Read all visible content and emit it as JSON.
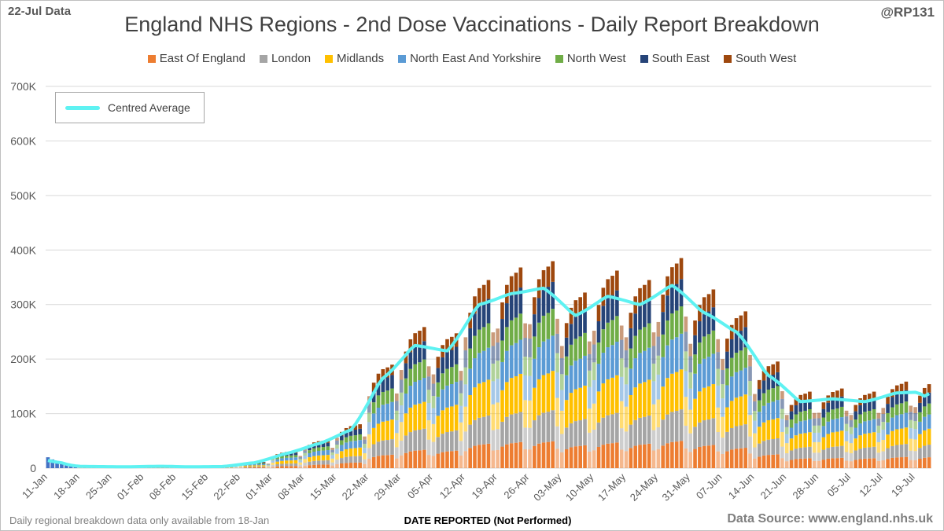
{
  "header": {
    "date_label": "22-Jul Data",
    "handle": "@RP131"
  },
  "footer": {
    "note": "Daily regional breakdown data only available from 18-Jan",
    "source": "Data Source: www.england.nhs.uk"
  },
  "colors": {
    "East Of England": "#ed7d31",
    "London": "#a5a5a5",
    "Midlands": "#ffc000",
    "North East And Yorkshire": "#5b9bd5",
    "North West": "#70ad47",
    "South East": "#264478",
    "South West": "#9e480e",
    "average": "#5ef2f2",
    "grid": "#d9d9d9",
    "axis_text": "#595959"
  },
  "chart_data": {
    "type": "bar",
    "stacked": true,
    "title": "England NHS Regions - 2nd Dose Vaccinations - Daily Report Breakdown",
    "xlabel": "DATE REPORTED (Not Performed)",
    "ylabel": "",
    "ylim": [
      0,
      700000
    ],
    "yticks": [
      0,
      100000,
      200000,
      300000,
      400000,
      500000,
      600000,
      700000
    ],
    "ytick_labels": [
      "0",
      "100K",
      "200K",
      "300K",
      "400K",
      "500K",
      "600K",
      "700K"
    ],
    "xtick_labels": [
      "11-Jan",
      "18-Jan",
      "25-Jan",
      "01-Feb",
      "08-Feb",
      "15-Feb",
      "22-Feb",
      "01-Mar",
      "08-Mar",
      "15-Mar",
      "22-Mar",
      "29-Mar",
      "05-Apr",
      "12-Apr",
      "19-Apr",
      "26-Apr",
      "03-May",
      "10-May",
      "17-May",
      "24-May",
      "31-May",
      "07-Jun",
      "14-Jun",
      "21-Jun",
      "28-Jun",
      "05-Jul",
      "12-Jul",
      "19-Jul"
    ],
    "legend": [
      "East Of England",
      "London",
      "Midlands",
      "North East And Yorkshire",
      "North West",
      "South East",
      "South West"
    ],
    "legend_position": "top",
    "average_legend": "Centred Average",
    "start_date": "11-Jan",
    "num_days": 193,
    "regional_breakdown_start_index": 7,
    "region_shares": [
      0.13,
      0.15,
      0.19,
      0.17,
      0.13,
      0.13,
      0.1
    ],
    "pre_breakdown_totals": [
      20000,
      16000,
      12000,
      8000,
      6000,
      4000,
      3000
    ],
    "weekly_averages": [
      {
        "week": "18-Jan",
        "avg": 3000
      },
      {
        "week": "25-Jan",
        "avg": 2500
      },
      {
        "week": "01-Feb",
        "avg": 3500
      },
      {
        "week": "08-Feb",
        "avg": 2500
      },
      {
        "week": "15-Feb",
        "avg": 3000
      },
      {
        "week": "22-Feb",
        "avg": 10000
      },
      {
        "week": "01-Mar",
        "avg": 27000
      },
      {
        "week": "08-Mar",
        "avg": 45000
      },
      {
        "week": "15-Mar",
        "avg": 70000
      },
      {
        "week": "22-Mar",
        "avg": 165000
      },
      {
        "week": "29-Mar",
        "avg": 225000
      },
      {
        "week": "05-Apr",
        "avg": 215000
      },
      {
        "week": "12-Apr",
        "avg": 300000
      },
      {
        "week": "19-Apr",
        "avg": 320000
      },
      {
        "week": "26-Apr",
        "avg": 330000
      },
      {
        "week": "03-May",
        "avg": 280000
      },
      {
        "week": "10-May",
        "avg": 315000
      },
      {
        "week": "17-May",
        "avg": 300000
      },
      {
        "week": "24-May",
        "avg": 335000
      },
      {
        "week": "31-May",
        "avg": 285000
      },
      {
        "week": "07-Jun",
        "avg": 250000
      },
      {
        "week": "14-Jun",
        "avg": 170000
      },
      {
        "week": "21-Jun",
        "avg": 122000
      },
      {
        "week": "28-Jun",
        "avg": 127000
      },
      {
        "week": "05-Jul",
        "avg": 122000
      },
      {
        "week": "12-Jul",
        "avg": 138000
      },
      {
        "week": "19-Jul",
        "avg": 140000
      }
    ],
    "weekday_factors": [
      0.8,
      0.95,
      1.05,
      1.1,
      1.12,
      1.15,
      0.83
    ]
  }
}
